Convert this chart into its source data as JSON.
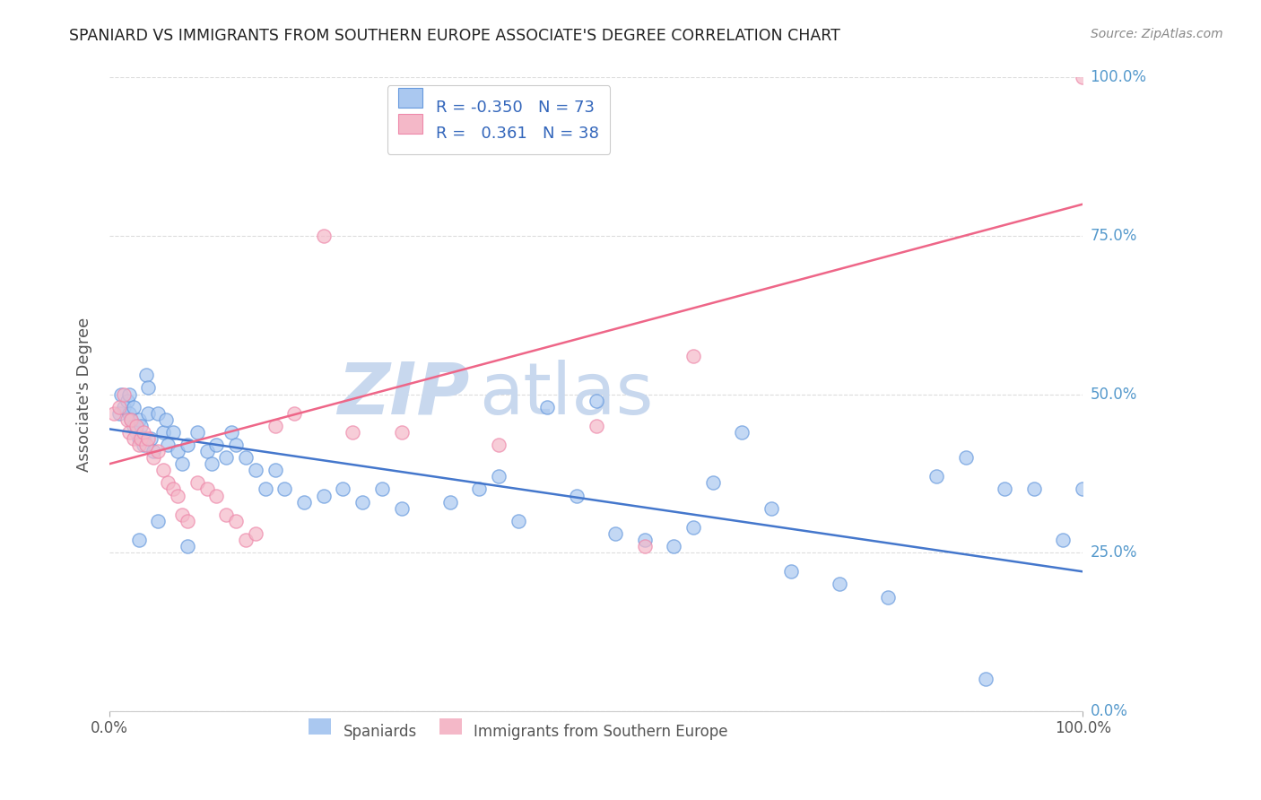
{
  "title": "SPANIARD VS IMMIGRANTS FROM SOUTHERN EUROPE ASSOCIATE'S DEGREE CORRELATION CHART",
  "source": "Source: ZipAtlas.com",
  "ylabel": "Associate's Degree",
  "watermark_zip": "ZIP",
  "watermark_atlas": "atlas",
  "blue_r": "-0.350",
  "blue_n": "73",
  "pink_r": "0.361",
  "pink_n": "38",
  "blue_scatter_x": [
    1.0,
    1.2,
    1.5,
    1.8,
    2.0,
    2.0,
    2.2,
    2.5,
    2.5,
    2.8,
    3.0,
    3.0,
    3.2,
    3.5,
    3.5,
    3.8,
    4.0,
    4.0,
    4.2,
    4.5,
    5.0,
    5.5,
    5.8,
    6.0,
    6.5,
    7.0,
    7.5,
    8.0,
    9.0,
    10.0,
    10.5,
    11.0,
    12.0,
    12.5,
    13.0,
    14.0,
    15.0,
    16.0,
    17.0,
    18.0,
    20.0,
    22.0,
    24.0,
    26.0,
    28.0,
    30.0,
    35.0,
    38.0,
    40.0,
    42.0,
    45.0,
    48.0,
    50.0,
    52.0,
    55.0,
    58.0,
    60.0,
    62.0,
    65.0,
    68.0,
    70.0,
    75.0,
    80.0,
    85.0,
    88.0,
    90.0,
    92.0,
    95.0,
    98.0,
    100.0,
    3.0,
    5.0,
    8.0
  ],
  "blue_scatter_y": [
    47.0,
    50.0,
    48.0,
    49.0,
    47.0,
    50.0,
    46.0,
    45.0,
    48.0,
    44.0,
    46.0,
    43.0,
    45.0,
    42.0,
    43.0,
    53.0,
    51.0,
    47.0,
    43.0,
    41.0,
    47.0,
    44.0,
    46.0,
    42.0,
    44.0,
    41.0,
    39.0,
    42.0,
    44.0,
    41.0,
    39.0,
    42.0,
    40.0,
    44.0,
    42.0,
    40.0,
    38.0,
    35.0,
    38.0,
    35.0,
    33.0,
    34.0,
    35.0,
    33.0,
    35.0,
    32.0,
    33.0,
    35.0,
    37.0,
    30.0,
    48.0,
    34.0,
    49.0,
    28.0,
    27.0,
    26.0,
    29.0,
    36.0,
    44.0,
    32.0,
    22.0,
    20.0,
    18.0,
    37.0,
    40.0,
    5.0,
    35.0,
    35.0,
    27.0,
    35.0,
    27.0,
    30.0,
    26.0
  ],
  "pink_scatter_x": [
    0.5,
    1.0,
    1.5,
    1.8,
    2.0,
    2.2,
    2.5,
    2.8,
    3.0,
    3.2,
    3.5,
    3.8,
    4.0,
    4.5,
    5.0,
    5.5,
    6.0,
    6.5,
    7.0,
    7.5,
    8.0,
    9.0,
    10.0,
    11.0,
    12.0,
    13.0,
    14.0,
    15.0,
    17.0,
    19.0,
    22.0,
    25.0,
    30.0,
    40.0,
    50.0,
    55.0,
    60.0,
    100.0
  ],
  "pink_scatter_y": [
    47.0,
    48.0,
    50.0,
    46.0,
    44.0,
    46.0,
    43.0,
    45.0,
    42.0,
    43.0,
    44.0,
    42.0,
    43.0,
    40.0,
    41.0,
    38.0,
    36.0,
    35.0,
    34.0,
    31.0,
    30.0,
    36.0,
    35.0,
    34.0,
    31.0,
    30.0,
    27.0,
    28.0,
    45.0,
    47.0,
    75.0,
    44.0,
    44.0,
    42.0,
    45.0,
    26.0,
    56.0,
    100.0
  ],
  "blue_line_x": [
    0,
    100
  ],
  "blue_line_y": [
    44.5,
    22.0
  ],
  "pink_line_x": [
    0,
    100
  ],
  "pink_line_y": [
    39.0,
    80.0
  ],
  "xlim": [
    0,
    100
  ],
  "ylim": [
    0,
    100
  ],
  "yticks": [
    0,
    25,
    50,
    75,
    100
  ],
  "ytick_labels_right": [
    "0.0%",
    "25.0%",
    "50.0%",
    "75.0%",
    "100.0%"
  ],
  "xtick_labels": [
    "0.0%",
    "100.0%"
  ],
  "blue_fill_color": "#aac8f0",
  "blue_edge_color": "#6699dd",
  "pink_fill_color": "#f4b8c8",
  "pink_edge_color": "#ee88aa",
  "blue_line_color": "#4477cc",
  "pink_line_color": "#ee6688",
  "grid_color": "#dddddd",
  "title_color": "#222222",
  "axis_label_color": "#555555",
  "right_tick_color": "#5599cc",
  "watermark_zip_color": "#c8d8ee",
  "watermark_atlas_color": "#c8d8ee",
  "source_color": "#888888",
  "legend_text_color": "#333333",
  "legend_r_color": "#3366bb",
  "legend_n_color": "#3366bb",
  "bottom_legend_color": "#555555",
  "background": "#ffffff"
}
